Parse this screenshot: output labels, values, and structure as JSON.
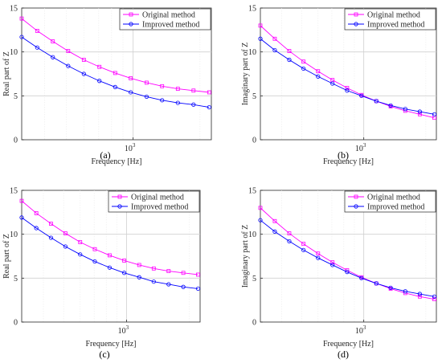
{
  "figure": {
    "panels": [
      {
        "label": "(a)"
      },
      {
        "label": "(b)"
      },
      {
        "label": "(c)"
      },
      {
        "label": "(d)"
      }
    ]
  },
  "chart_data": [
    {
      "type": "line",
      "panel": "(a)",
      "xlabel": "Frequency [Hz]",
      "ylabel": "Real part of Z",
      "xscale": "log",
      "xlim": [
        315,
        2250
      ],
      "ylim": [
        0,
        15
      ],
      "yticks": [
        0,
        5,
        10,
        15
      ],
      "xticks": [
        {
          "value": 1000,
          "label_base": "10",
          "label_exp": "3"
        }
      ],
      "grid": true,
      "legend_position": "top-right",
      "x": [
        315,
        370,
        435,
        510,
        600,
        705,
        830,
        975,
        1150,
        1350,
        1590,
        1870,
        2200
      ],
      "series": [
        {
          "name": "Original method",
          "color": "#ff00ff",
          "marker": "square",
          "values": [
            13.8,
            12.4,
            11.2,
            10.1,
            9.1,
            8.3,
            7.6,
            7.0,
            6.5,
            6.1,
            5.8,
            5.6,
            5.4
          ]
        },
        {
          "name": "Improved method",
          "color": "#0000ff",
          "marker": "circle",
          "values": [
            11.7,
            10.5,
            9.4,
            8.4,
            7.5,
            6.7,
            6.0,
            5.4,
            4.9,
            4.5,
            4.2,
            4.0,
            3.7
          ]
        }
      ]
    },
    {
      "type": "line",
      "panel": "(b)",
      "xlabel": "Frequency [Hz]",
      "ylabel": "Imaginary part of Z",
      "xscale": "log",
      "xlim": [
        315,
        2250
      ],
      "ylim": [
        0,
        15
      ],
      "yticks": [
        0,
        5,
        10,
        15
      ],
      "xticks": [
        {
          "value": 1000,
          "label_base": "10",
          "label_exp": "3"
        }
      ],
      "grid": true,
      "legend_position": "top-right",
      "x": [
        315,
        370,
        435,
        510,
        600,
        705,
        830,
        975,
        1150,
        1350,
        1590,
        1870,
        2200
      ],
      "series": [
        {
          "name": "Original method",
          "color": "#ff00ff",
          "marker": "square",
          "values": [
            13.0,
            11.5,
            10.1,
            8.9,
            7.8,
            6.8,
            5.9,
            5.1,
            4.4,
            3.8,
            3.3,
            2.9,
            2.5
          ]
        },
        {
          "name": "Improved method",
          "color": "#0000ff",
          "marker": "circle",
          "values": [
            11.5,
            10.2,
            9.1,
            8.1,
            7.2,
            6.4,
            5.6,
            5.0,
            4.4,
            3.9,
            3.5,
            3.2,
            2.9
          ]
        }
      ]
    },
    {
      "type": "line",
      "panel": "(c)",
      "xlabel": "Frequency [Hz]",
      "ylabel": "Real part of Z",
      "xscale": "log",
      "xlim": [
        315,
        2250
      ],
      "ylim": [
        0,
        15
      ],
      "yticks": [
        0,
        5,
        10,
        15
      ],
      "xticks": [
        {
          "value": 1000,
          "label_base": "10",
          "label_exp": "3"
        }
      ],
      "grid": true,
      "legend_position": "top-right",
      "x": [
        315,
        370,
        435,
        510,
        600,
        705,
        830,
        975,
        1150,
        1350,
        1590,
        1870,
        2200
      ],
      "series": [
        {
          "name": "Original method",
          "color": "#ff00ff",
          "marker": "square",
          "values": [
            13.8,
            12.4,
            11.2,
            10.1,
            9.1,
            8.3,
            7.6,
            7.0,
            6.5,
            6.1,
            5.8,
            5.6,
            5.4
          ]
        },
        {
          "name": "Improved method",
          "color": "#0000ff",
          "marker": "circle",
          "values": [
            11.9,
            10.7,
            9.6,
            8.6,
            7.7,
            6.9,
            6.2,
            5.6,
            5.1,
            4.6,
            4.3,
            4.0,
            3.8
          ]
        }
      ]
    },
    {
      "type": "line",
      "panel": "(d)",
      "xlabel": "Frequency [Hz]",
      "ylabel": "Imaginary part of Z",
      "xscale": "log",
      "xlim": [
        315,
        2250
      ],
      "ylim": [
        0,
        15
      ],
      "yticks": [
        0,
        5,
        10,
        15
      ],
      "xticks": [
        {
          "value": 1000,
          "label_base": "10",
          "label_exp": "3"
        }
      ],
      "grid": true,
      "legend_position": "top-right",
      "x": [
        315,
        370,
        435,
        510,
        600,
        705,
        830,
        975,
        1150,
        1350,
        1590,
        1870,
        2200
      ],
      "series": [
        {
          "name": "Original method",
          "color": "#ff00ff",
          "marker": "square",
          "values": [
            13.0,
            11.5,
            10.1,
            8.9,
            7.8,
            6.8,
            5.9,
            5.1,
            4.4,
            3.8,
            3.3,
            2.9,
            2.6
          ]
        },
        {
          "name": "Improved method",
          "color": "#0000ff",
          "marker": "circle",
          "values": [
            11.6,
            10.3,
            9.2,
            8.2,
            7.3,
            6.5,
            5.7,
            5.0,
            4.4,
            3.9,
            3.5,
            3.2,
            2.9
          ]
        }
      ]
    }
  ]
}
